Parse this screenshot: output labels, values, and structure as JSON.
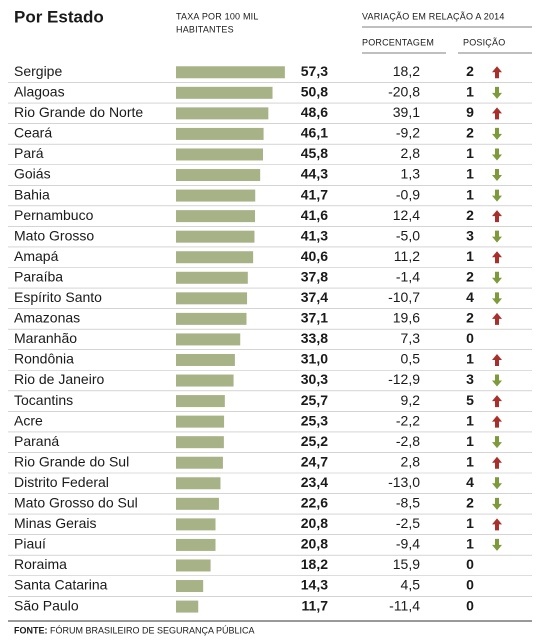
{
  "header": {
    "title": "Por Estado",
    "rate_heading": "TAXA POR 100 MIL HABITANTES",
    "variation_heading": "VARIAÇÃO EM RELAÇÃO A 2014",
    "pct_heading": "PORCENTAGEM",
    "position_heading": "POSIÇÃO"
  },
  "table": {
    "bar_color": "#a8b287",
    "up_color": "#a8302c",
    "down_color": "#7d9a3c",
    "rows": [
      {
        "state": "Sergipe",
        "rate": 57.3,
        "rate_label": "57,3",
        "pct": "18,2",
        "position": 2,
        "trend": "up"
      },
      {
        "state": "Alagoas",
        "rate": 50.8,
        "rate_label": "50,8",
        "pct": "-20,8",
        "position": 1,
        "trend": "down"
      },
      {
        "state": "Rio Grande do Norte",
        "rate": 48.6,
        "rate_label": "48,6",
        "pct": "39,1",
        "position": 9,
        "trend": "up"
      },
      {
        "state": "Ceará",
        "rate": 46.1,
        "rate_label": "46,1",
        "pct": "-9,2",
        "position": 2,
        "trend": "down"
      },
      {
        "state": "Pará",
        "rate": 45.8,
        "rate_label": "45,8",
        "pct": "2,8",
        "position": 1,
        "trend": "down"
      },
      {
        "state": "Goiás",
        "rate": 44.3,
        "rate_label": "44,3",
        "pct": "1,3",
        "position": 1,
        "trend": "down"
      },
      {
        "state": "Bahia",
        "rate": 41.7,
        "rate_label": "41,7",
        "pct": "-0,9",
        "position": 1,
        "trend": "down"
      },
      {
        "state": "Pernambuco",
        "rate": 41.6,
        "rate_label": "41,6",
        "pct": "12,4",
        "position": 2,
        "trend": "up"
      },
      {
        "state": "Mato Grosso",
        "rate": 41.3,
        "rate_label": "41,3",
        "pct": "-5,0",
        "position": 3,
        "trend": "down"
      },
      {
        "state": "Amapá",
        "rate": 40.6,
        "rate_label": "40,6",
        "pct": "11,2",
        "position": 1,
        "trend": "up"
      },
      {
        "state": "Paraíba",
        "rate": 37.8,
        "rate_label": "37,8",
        "pct": "-1,4",
        "position": 2,
        "trend": "down"
      },
      {
        "state": "Espírito Santo",
        "rate": 37.4,
        "rate_label": "37,4",
        "pct": "-10,7",
        "position": 4,
        "trend": "down"
      },
      {
        "state": "Amazonas",
        "rate": 37.1,
        "rate_label": "37,1",
        "pct": "19,6",
        "position": 2,
        "trend": "up"
      },
      {
        "state": "Maranhão",
        "rate": 33.8,
        "rate_label": "33,8",
        "pct": "7,3",
        "position": 0
      },
      {
        "state": "Rondônia",
        "rate": 31.0,
        "rate_label": "31,0",
        "pct": "0,5",
        "position": 1,
        "trend": "up"
      },
      {
        "state": "Rio de Janeiro",
        "rate": 30.3,
        "rate_label": "30,3",
        "pct": "-12,9",
        "position": 3,
        "trend": "down"
      },
      {
        "state": "Tocantins",
        "rate": 25.7,
        "rate_label": "25,7",
        "pct": "9,2",
        "position": 5,
        "trend": "up"
      },
      {
        "state": "Acre",
        "rate": 25.3,
        "rate_label": "25,3",
        "pct": "-2,2",
        "position": 1,
        "trend": "up"
      },
      {
        "state": "Paraná",
        "rate": 25.2,
        "rate_label": "25,2",
        "pct": "-2,8",
        "position": 1,
        "trend": "down"
      },
      {
        "state": "Rio Grande do Sul",
        "rate": 24.7,
        "rate_label": "24,7",
        "pct": "2,8",
        "position": 1,
        "trend": "up"
      },
      {
        "state": "Distrito Federal",
        "rate": 23.4,
        "rate_label": "23,4",
        "pct": "-13,0",
        "position": 4,
        "trend": "down"
      },
      {
        "state": "Mato Grosso do Sul",
        "rate": 22.6,
        "rate_label": "22,6",
        "pct": "-8,5",
        "position": 2,
        "trend": "down"
      },
      {
        "state": "Minas Gerais",
        "rate": 20.8,
        "rate_label": "20,8",
        "pct": "-2,5",
        "position": 1,
        "trend": "up"
      },
      {
        "state": "Piauí",
        "rate": 20.8,
        "rate_label": "20,8",
        "pct": "-9,4",
        "position": 1,
        "trend": "down"
      },
      {
        "state": "Roraima",
        "rate": 18.2,
        "rate_label": "18,2",
        "pct": "15,9",
        "position": 0
      },
      {
        "state": "Santa Catarina",
        "rate": 14.3,
        "rate_label": "14,3",
        "pct": "4,5",
        "position": 0
      },
      {
        "state": "São Paulo",
        "rate": 11.7,
        "rate_label": "11,7",
        "pct": "-11,4",
        "position": 0
      }
    ]
  },
  "footer": {
    "source_label": "FONTE:",
    "source": "FÓRUM BRASILEIRO DE SEGURANÇA PÚBLICA"
  }
}
